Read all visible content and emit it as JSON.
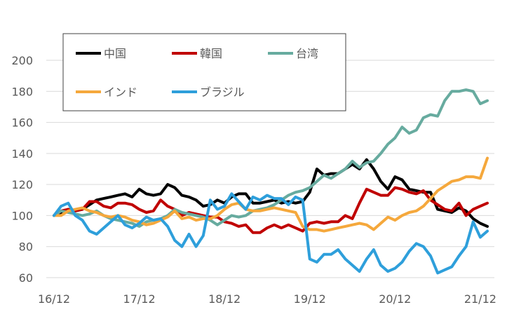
{
  "chart_data": {
    "type": "line",
    "title": "",
    "xlabel": "",
    "ylabel": "",
    "ylim": [
      60,
      200
    ],
    "xlim": [
      0,
      61
    ],
    "y_ticks": [
      60,
      80,
      100,
      120,
      140,
      160,
      180,
      200
    ],
    "x_ticks": [
      {
        "label": "16/12",
        "x": 0
      },
      {
        "label": "17/12",
        "x": 12
      },
      {
        "label": "18/12",
        "x": 24
      },
      {
        "label": "19/12",
        "x": 36
      },
      {
        "label": "20/12",
        "x": 48
      },
      {
        "label": "21/12",
        "x": 60
      }
    ],
    "grid": "horizontal",
    "legend_position": "top-left inside",
    "series": [
      {
        "name": "中国",
        "color": "#000000",
        "values": [
          100,
          102,
          104,
          103,
          104,
          107,
          110,
          111,
          112,
          113,
          114,
          112,
          117,
          114,
          113,
          114,
          120,
          118,
          113,
          112,
          110,
          106,
          107,
          110,
          108,
          112,
          114,
          114,
          108,
          108,
          109,
          110,
          108,
          109,
          108,
          109,
          115,
          130,
          126,
          127,
          127,
          130,
          133,
          130,
          136,
          130,
          122,
          117,
          125,
          123,
          117,
          116,
          115,
          115,
          104,
          103,
          102,
          105,
          103,
          98,
          95,
          93
        ]
      },
      {
        "name": "韓国",
        "color": "#c00000",
        "values": [
          100,
          103,
          104,
          103,
          104,
          109,
          109,
          106,
          105,
          108,
          108,
          107,
          104,
          102,
          103,
          110,
          106,
          104,
          100,
          102,
          101,
          100,
          99,
          99,
          96,
          95,
          93,
          94,
          89,
          89,
          92,
          94,
          92,
          94,
          92,
          90,
          95,
          96,
          95,
          96,
          96,
          100,
          98,
          108,
          117,
          115,
          113,
          113,
          118,
          117,
          115,
          114,
          116,
          110,
          107,
          104,
          103,
          108,
          100,
          104,
          106,
          108
        ]
      },
      {
        "name": "台湾",
        "color": "#67ab9f",
        "values": [
          100,
          103,
          102,
          101,
          100,
          101,
          103,
          100,
          98,
          97,
          96,
          95,
          93,
          96,
          97,
          98,
          100,
          104,
          102,
          101,
          100,
          99,
          97,
          94,
          97,
          100,
          99,
          100,
          103,
          104,
          105,
          107,
          110,
          113,
          115,
          116,
          118,
          122,
          126,
          124,
          127,
          130,
          135,
          131,
          134,
          135,
          140,
          146,
          150,
          157,
          153,
          155,
          163,
          165,
          164,
          174,
          180,
          180,
          181,
          180,
          172,
          174
        ]
      },
      {
        "name": "インド",
        "color": "#f5a83c",
        "values": [
          100,
          100,
          103,
          104,
          105,
          103,
          102,
          100,
          99,
          100,
          99,
          97,
          96,
          94,
          95,
          97,
          99,
          103,
          98,
          99,
          97,
          98,
          98,
          100,
          104,
          107,
          108,
          104,
          103,
          103,
          104,
          105,
          104,
          103,
          102,
          93,
          91,
          91,
          90,
          91,
          92,
          93,
          94,
          95,
          94,
          91,
          95,
          99,
          97,
          100,
          102,
          103,
          106,
          111,
          116,
          119,
          122,
          123,
          125,
          125,
          124,
          137
        ]
      },
      {
        "name": "ブラジル",
        "color": "#2e9fdb",
        "values": [
          100,
          106,
          108,
          100,
          97,
          90,
          88,
          92,
          96,
          100,
          94,
          92,
          95,
          99,
          97,
          98,
          93,
          84,
          80,
          88,
          80,
          87,
          110,
          104,
          106,
          114,
          109,
          104,
          112,
          110,
          113,
          111,
          111,
          107,
          112,
          110,
          72,
          70,
          75,
          75,
          78,
          72,
          68,
          64,
          72,
          78,
          68,
          64,
          66,
          70,
          77,
          82,
          80,
          74,
          63,
          65,
          67,
          74,
          80,
          96,
          86,
          90
        ]
      }
    ]
  }
}
